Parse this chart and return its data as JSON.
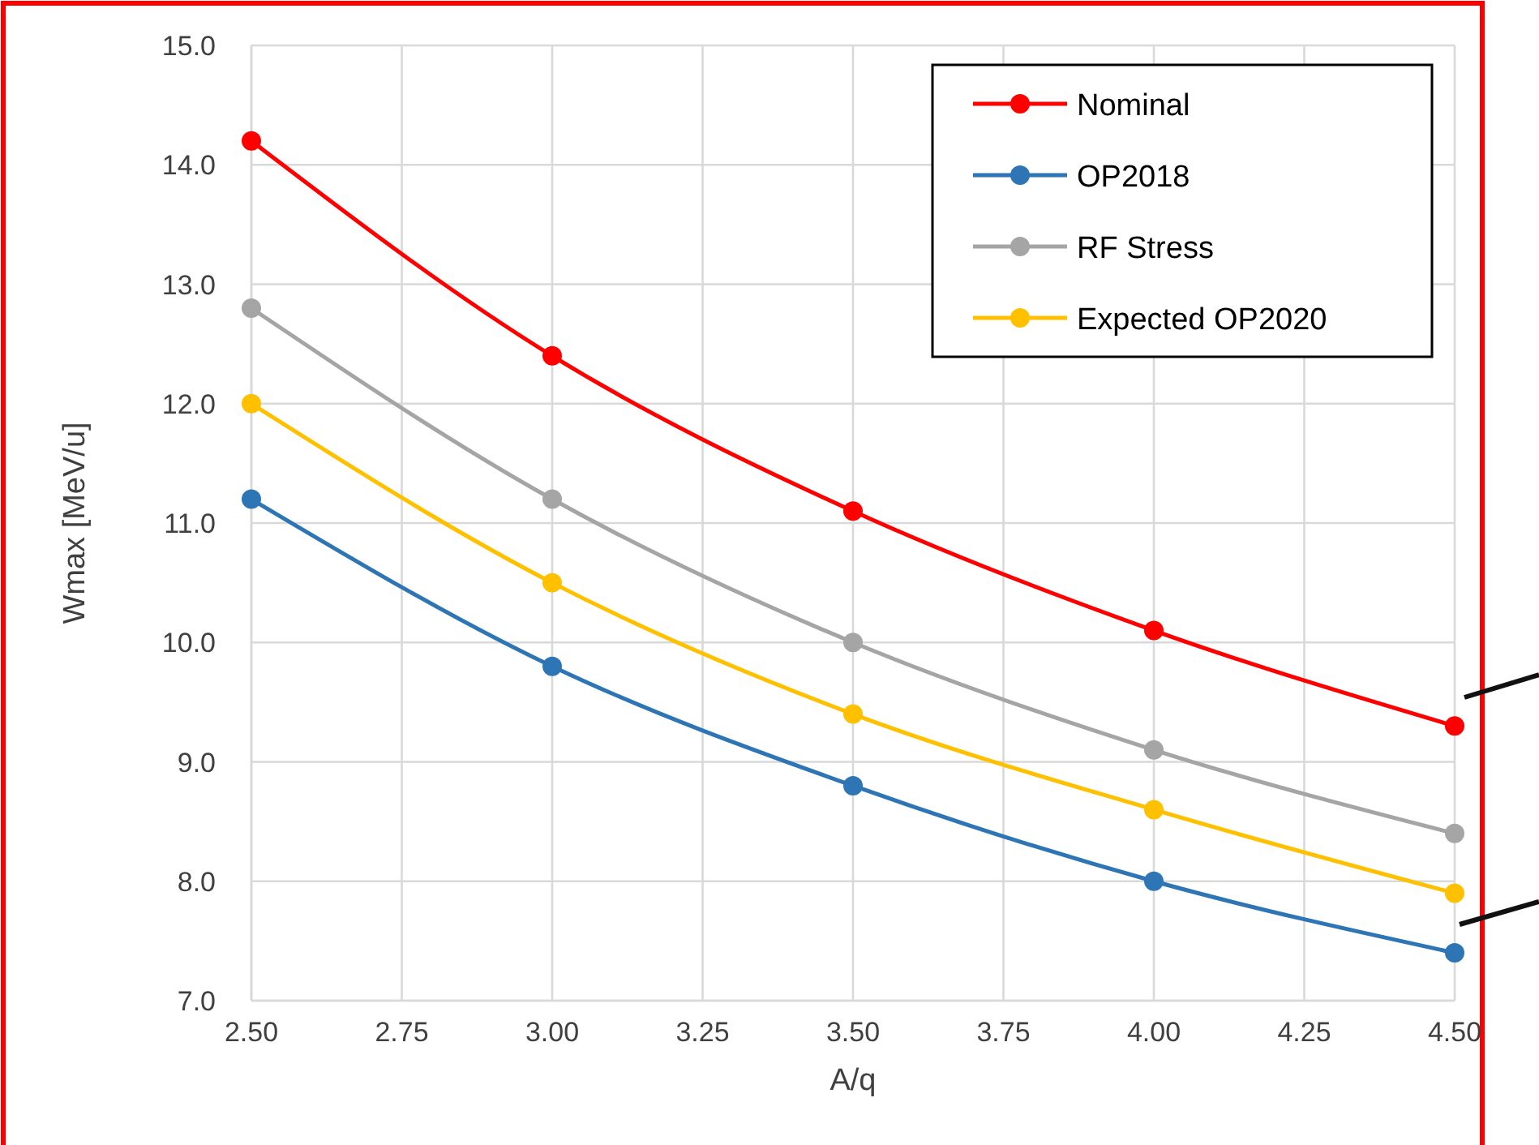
{
  "chart_data": {
    "type": "line",
    "xlabel": "A/q",
    "ylabel": "Wmax [MeV/u]",
    "x": [
      2.5,
      3.0,
      3.5,
      4.0,
      4.5
    ],
    "xlim": [
      2.5,
      4.5
    ],
    "xticks": [
      {
        "value": 2.5,
        "label": "2.50"
      },
      2.75,
      {
        "value": 3.0,
        "label": "3.00"
      },
      3.25,
      {
        "value": 3.5,
        "label": "3.50"
      },
      3.75,
      {
        "value": 4.0,
        "label": "4.00"
      },
      4.25,
      {
        "value": 4.5,
        "label": "4.50"
      }
    ],
    "ylim": [
      7,
      15
    ],
    "yticks": [
      {
        "value": 7,
        "label": "7.0"
      },
      {
        "value": 8,
        "label": "8.0"
      },
      {
        "value": 9,
        "label": "9.0"
      },
      {
        "value": 10,
        "label": "10.0"
      },
      {
        "value": 11,
        "label": "11.0"
      },
      {
        "value": 12,
        "label": "12.0"
      },
      {
        "value": 13,
        "label": "13.0"
      },
      {
        "value": 14,
        "label": "14.0"
      },
      {
        "value": 15,
        "label": "15.0"
      }
    ],
    "grid": true,
    "legend": "top right",
    "marker": "circle",
    "line_style": "solid",
    "series": [
      {
        "name": "Nominal",
        "color": "#ff0000",
        "values": [
          14.2,
          12.4,
          11.1,
          10.1,
          9.3
        ]
      },
      {
        "name": "OP2018",
        "color": "#2e75b6",
        "values": [
          11.2,
          9.8,
          8.8,
          8.0,
          7.4
        ]
      },
      {
        "name": "RF Stress",
        "color": "#a5a5a5",
        "values": [
          12.8,
          11.2,
          10.0,
          9.1,
          8.4
        ]
      },
      {
        "name": "Expected OP2020",
        "color": "#ffc000",
        "values": [
          12.0,
          10.5,
          9.4,
          8.6,
          7.9
        ]
      }
    ]
  }
}
